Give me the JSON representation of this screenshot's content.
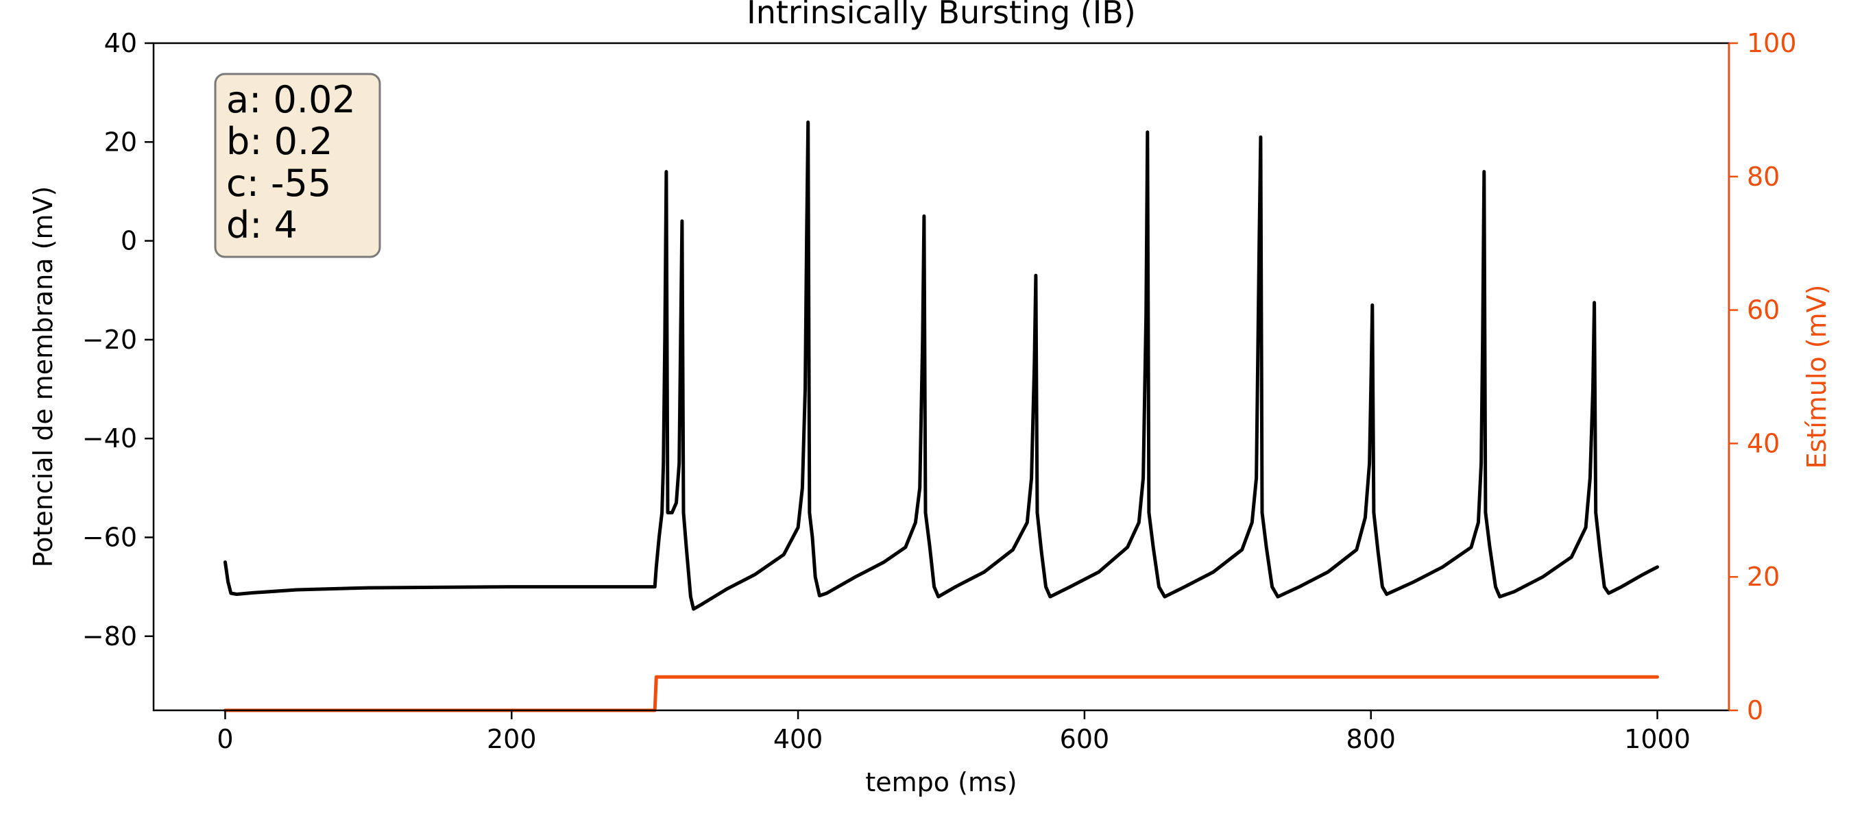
{
  "chart_data": {
    "type": "line",
    "title": "Intrinsically Bursting (IB)",
    "xlabel": "tempo (ms)",
    "ylabel": "Potencial de membrana (mV)",
    "ylabel_right": "Estímulo (mV)",
    "xlim": [
      -50,
      1050
    ],
    "ylim": [
      -95,
      40
    ],
    "ylim_right": [
      0,
      100
    ],
    "x_ticks": [
      0,
      200,
      400,
      600,
      800,
      1000
    ],
    "y_ticks": [
      -80,
      -60,
      -40,
      -20,
      0,
      20,
      40
    ],
    "y_ticks_right": [
      0,
      20,
      40,
      60,
      80,
      100
    ],
    "tick_labels": {
      "x": [
        "0",
        "200",
        "400",
        "600",
        "800",
        "1000"
      ],
      "y": [
        "−80",
        "−60",
        "−40",
        "−20",
        "0",
        "20",
        "40"
      ],
      "y_right": [
        "0",
        "20",
        "40",
        "60",
        "80",
        "100"
      ]
    },
    "grid": false,
    "parameters": [
      "a: 0.02",
      "b: 0.2",
      "c: -55",
      "d: 4"
    ],
    "series": [
      {
        "axis": "left",
        "color": "#000000",
        "values": [
          [
            0,
            -65
          ],
          [
            2,
            -69
          ],
          [
            4,
            -71.3
          ],
          [
            8,
            -71.5
          ],
          [
            20,
            -71.2
          ],
          [
            50,
            -70.6
          ],
          [
            100,
            -70.2
          ],
          [
            200,
            -70
          ],
          [
            300,
            -70
          ],
          [
            301,
            -66
          ],
          [
            303,
            -60
          ],
          [
            305,
            -55
          ],
          [
            306,
            -45
          ],
          [
            307,
            -20
          ],
          [
            308,
            14
          ],
          [
            309,
            -55
          ],
          [
            312,
            -55
          ],
          [
            315,
            -53
          ],
          [
            317,
            -45
          ],
          [
            318,
            -20
          ],
          [
            319,
            4
          ],
          [
            320,
            -55
          ],
          [
            322,
            -62
          ],
          [
            325,
            -72
          ],
          [
            327,
            -74.5
          ],
          [
            333,
            -73.5
          ],
          [
            350,
            -70.5
          ],
          [
            370,
            -67.5
          ],
          [
            390,
            -63.5
          ],
          [
            400,
            -58
          ],
          [
            403,
            -50
          ],
          [
            405,
            -30
          ],
          [
            406,
            0
          ],
          [
            407,
            24
          ],
          [
            408,
            -55
          ],
          [
            410,
            -60
          ],
          [
            412,
            -68
          ],
          [
            415,
            -71.8
          ],
          [
            420,
            -71.3
          ],
          [
            440,
            -68
          ],
          [
            460,
            -65
          ],
          [
            475,
            -62
          ],
          [
            482,
            -57
          ],
          [
            485,
            -50
          ],
          [
            487,
            -20
          ],
          [
            488,
            5
          ],
          [
            489,
            -55
          ],
          [
            492,
            -62
          ],
          [
            495,
            -70
          ],
          [
            498,
            -72
          ],
          [
            510,
            -70
          ],
          [
            530,
            -67
          ],
          [
            550,
            -62.5
          ],
          [
            560,
            -57
          ],
          [
            563,
            -48
          ],
          [
            565,
            -25
          ],
          [
            566,
            -7
          ],
          [
            567,
            -55
          ],
          [
            570,
            -63
          ],
          [
            573,
            -70
          ],
          [
            576,
            -72
          ],
          [
            590,
            -70
          ],
          [
            610,
            -67
          ],
          [
            630,
            -62
          ],
          [
            638,
            -57
          ],
          [
            641,
            -48
          ],
          [
            643,
            -15
          ],
          [
            644,
            22
          ],
          [
            645,
            -55
          ],
          [
            648,
            -62
          ],
          [
            652,
            -70
          ],
          [
            656,
            -72
          ],
          [
            670,
            -70
          ],
          [
            690,
            -67
          ],
          [
            710,
            -62.5
          ],
          [
            717,
            -57
          ],
          [
            720,
            -48
          ],
          [
            722,
            0
          ],
          [
            723,
            21
          ],
          [
            724,
            -55
          ],
          [
            727,
            -62
          ],
          [
            731,
            -70
          ],
          [
            735,
            -72
          ],
          [
            750,
            -70
          ],
          [
            770,
            -67
          ],
          [
            790,
            -62.5
          ],
          [
            796,
            -56
          ],
          [
            799,
            -45
          ],
          [
            800,
            -30
          ],
          [
            801,
            -13
          ],
          [
            802,
            -55
          ],
          [
            805,
            -63
          ],
          [
            808,
            -70
          ],
          [
            811,
            -71.5
          ],
          [
            830,
            -69
          ],
          [
            850,
            -66
          ],
          [
            870,
            -62
          ],
          [
            875,
            -57
          ],
          [
            877,
            -45
          ],
          [
            878,
            -20
          ],
          [
            879,
            14
          ],
          [
            880,
            -55
          ],
          [
            883,
            -62
          ],
          [
            887,
            -70
          ],
          [
            890,
            -72
          ],
          [
            900,
            -71
          ],
          [
            920,
            -68
          ],
          [
            940,
            -64
          ],
          [
            950,
            -58
          ],
          [
            953,
            -48
          ],
          [
            955,
            -30
          ],
          [
            956,
            -12.5
          ],
          [
            957,
            -55
          ],
          [
            960,
            -63
          ],
          [
            963,
            -70
          ],
          [
            966,
            -71.3
          ],
          [
            975,
            -70
          ],
          [
            990,
            -67.5
          ],
          [
            1000,
            -66
          ]
        ]
      },
      {
        "axis": "right",
        "color": "#f04e0b",
        "values": [
          [
            0,
            0
          ],
          [
            300,
            0
          ],
          [
            301,
            5
          ],
          [
            1000,
            5
          ]
        ]
      }
    ]
  }
}
